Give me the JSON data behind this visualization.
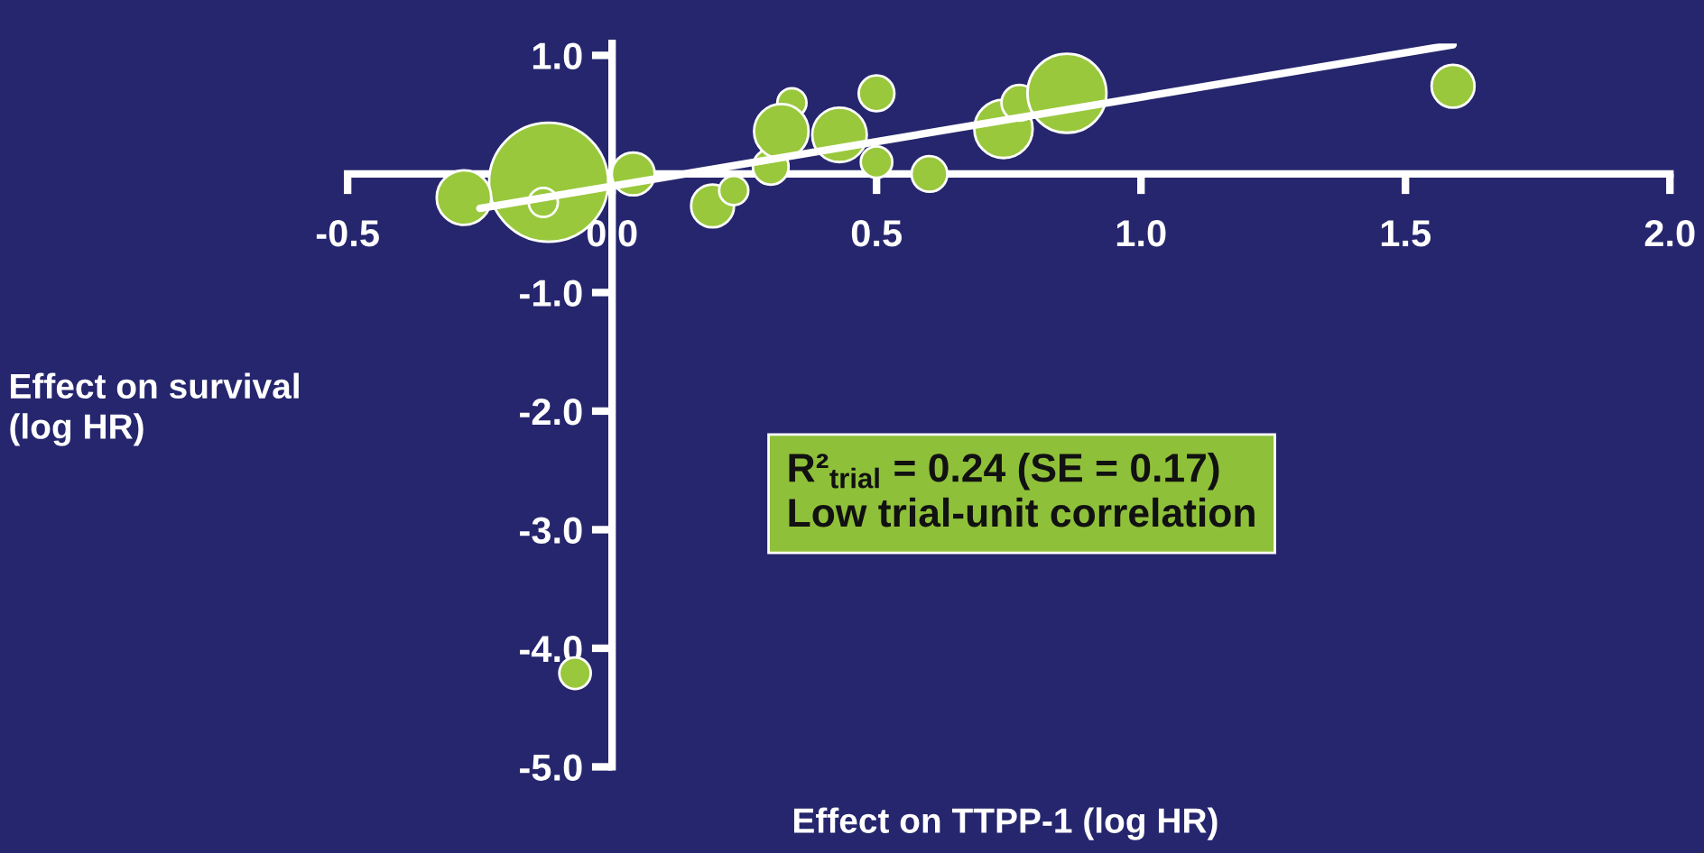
{
  "chart_data": {
    "type": "bubble",
    "xlabel": "Effect on TTPP-1 (log HR)",
    "ylabel": "Effect on survival\n(log HR)",
    "annotations": [
      "R²$_{trial}$ = 0.24 (SE = 0.17)",
      "Low trial-unit correlation"
    ],
    "xlim": [
      -0.5,
      2.0
    ],
    "xticks": [
      -0.5,
      {
        "value": 0,
        "label": "0.0"
      },
      0.5,
      {
        "value": 1,
        "label": "1.0"
      },
      1.5,
      {
        "value": 2,
        "label": "2.0"
      }
    ],
    "ylim": [
      -5.0,
      1.1
    ],
    "yticks": [
      {
        "value": -5,
        "label": "-5.0"
      },
      {
        "value": -4,
        "label": "-4.0"
      },
      {
        "value": -3,
        "label": "-3.0"
      },
      {
        "value": -2,
        "label": "-2.0"
      },
      {
        "value": -1,
        "label": "-1.0"
      },
      {
        "value": 1,
        "label": "1.0"
      }
    ],
    "grid": false,
    "series": [
      {
        "color": "#99c83c",
        "x": [
          -0.12,
          -0.28,
          -0.13,
          0.04,
          0.19,
          0.23,
          0.3,
          0.34,
          0.32,
          0.43,
          0.5,
          0.5,
          0.6,
          0.74,
          0.77,
          0.86,
          1.59,
          -0.07
        ],
        "values": [
          -0.07,
          -0.2,
          -0.24,
          0.0,
          -0.27,
          -0.14,
          0.06,
          0.6,
          0.36,
          0.33,
          0.68,
          0.1,
          0.0,
          0.38,
          0.6,
          0.68,
          0.74,
          -4.21
        ],
        "sizes": [
          1,
          0.21,
          0.06,
          0.13,
          0.13,
          0.06,
          0.09,
          0.06,
          0.21,
          0.21,
          0.09,
          0.07,
          0.09,
          0.24,
          0.09,
          0.44,
          0.13,
          0.07
        ]
      },
      {
        "type": "line",
        "color": "#ffffff",
        "x": [
          -0.25,
          1.59
        ],
        "values": [
          -0.29,
          1.09
        ]
      }
    ]
  }
}
